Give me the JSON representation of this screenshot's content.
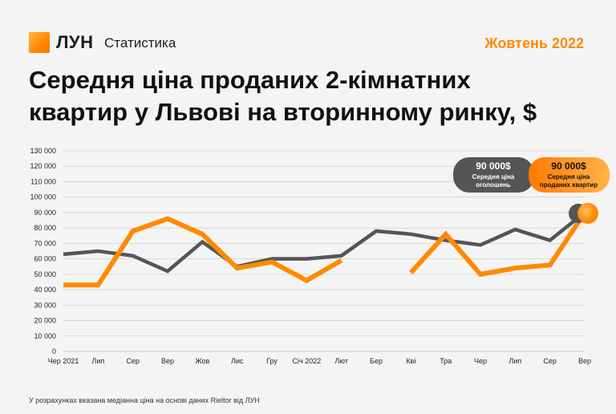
{
  "header": {
    "brand": "ЛУН",
    "product": "Статистика",
    "date": "Жовтень 2022"
  },
  "title_line1": "Середня ціна проданих 2-кімнатних",
  "title_line2": "квартир у Львові на вторинному ринку, $",
  "footnote": "У розрахунках вказана медіанна ціна на основі даних Rieltor від ЛУН",
  "colors": {
    "listed": "#555555",
    "sold": "#ff8a00",
    "grid": "#d0d0d0"
  },
  "chart_data": {
    "type": "line",
    "title": "Середня ціна проданих 2-кімнатних квартир у Львові на вторинному ринку, $",
    "categories": [
      "Чер 2021",
      "Лип",
      "Сер",
      "Вер",
      "Жов",
      "Лис",
      "Гру",
      "Січ 2022",
      "Лют",
      "Бер",
      "Кві",
      "Тра",
      "Чер",
      "Лип",
      "Сер",
      "Вер"
    ],
    "ylim": [
      0,
      130000
    ],
    "yticks": [
      0,
      10000,
      20000,
      30000,
      40000,
      50000,
      60000,
      70000,
      80000,
      90000,
      100000,
      110000,
      120000,
      130000
    ],
    "ytick_labels": [
      "0",
      "10 000",
      "20 000",
      "30 000",
      "40 000",
      "50 000",
      "60 000",
      "70 000",
      "80 000",
      "90 000",
      "100 000",
      "110 000",
      "120 000",
      "130 000"
    ],
    "grid": true,
    "series": [
      {
        "name": "Середня ціна оголошень",
        "color": "#555555",
        "values": [
          63000,
          65000,
          62000,
          52000,
          71000,
          55000,
          60000,
          60000,
          62000,
          78000,
          76000,
          72000,
          69000,
          79000,
          72000,
          90000
        ]
      },
      {
        "name": "Середня ціна проданих квартир",
        "color": "#ff8a00",
        "values": [
          43000,
          43000,
          78000,
          86000,
          76000,
          54000,
          58000,
          46000,
          59000,
          null,
          51000,
          76000,
          50000,
          54000,
          56000,
          90000
        ]
      }
    ],
    "annotations": [
      {
        "series": 0,
        "value_label": "90 000$",
        "label_line1": "Середня ціна",
        "label_line2": "оголошень"
      },
      {
        "series": 1,
        "value_label": "90 000$",
        "label_line1": "Середня ціна",
        "label_line2": "проданих квартир"
      }
    ]
  }
}
